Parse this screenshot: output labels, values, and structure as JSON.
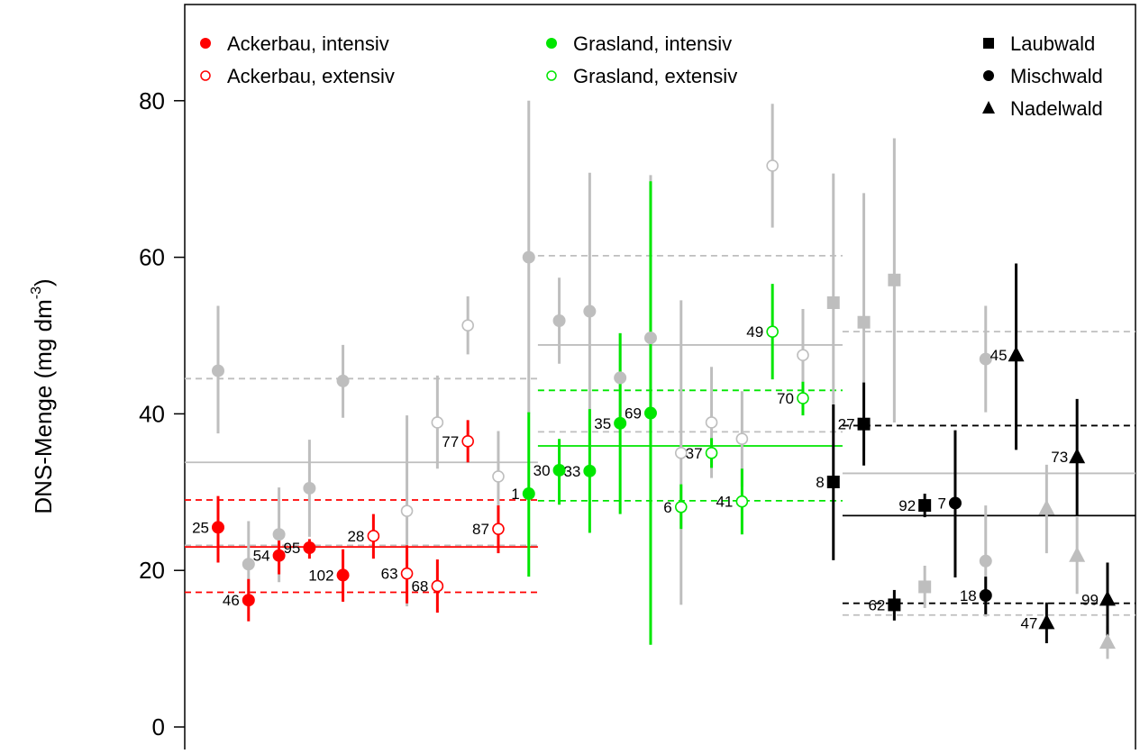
{
  "chart_data": {
    "type": "scatter",
    "title": "",
    "xlabel": "",
    "ylabel": "DNS-Menge (mg dm",
    "ylabel_superscript": "-3",
    "ylabel_suffix": ")",
    "ylim": [
      0,
      90
    ],
    "yticks": [
      0,
      20,
      40,
      60,
      80
    ],
    "grid": false,
    "legend_position": "top",
    "colors": {
      "ackerbau": "#ff0000",
      "grasland": "#00e600",
      "wald": "#000000",
      "reference": "#bebebe"
    },
    "legend": [
      {
        "label": "Ackerbau, intensiv",
        "color": "#ff0000",
        "shape": "circle",
        "filled": true
      },
      {
        "label": "Ackerbau, extensiv",
        "color": "#ff0000",
        "shape": "circle",
        "filled": false
      },
      {
        "label": "Grasland, intensiv",
        "color": "#00e600",
        "shape": "circle",
        "filled": true
      },
      {
        "label": "Grasland, extensiv",
        "color": "#00e600",
        "shape": "circle",
        "filled": false
      },
      {
        "label": "Laubwald",
        "color": "#000000",
        "shape": "square",
        "filled": true
      },
      {
        "label": "Mischwald",
        "color": "#000000",
        "shape": "circle",
        "filled": true
      },
      {
        "label": "Nadelwald",
        "color": "#000000",
        "shape": "triangle",
        "filled": true
      }
    ],
    "points": [
      {
        "x": 1.0,
        "y": 45.5,
        "lo": 37.5,
        "hi": 53.8,
        "color": "#bebebe",
        "shape": "circle",
        "filled": true,
        "label": ""
      },
      {
        "x": 1.0,
        "y": 25.5,
        "lo": 21.0,
        "hi": 29.5,
        "color": "#ff0000",
        "shape": "circle",
        "filled": true,
        "label": "25"
      },
      {
        "x": 2.0,
        "y": 20.8,
        "lo": 15.5,
        "hi": 26.3,
        "color": "#bebebe",
        "shape": "circle",
        "filled": true,
        "label": ""
      },
      {
        "x": 2.0,
        "y": 16.2,
        "lo": 13.5,
        "hi": 18.9,
        "color": "#ff0000",
        "shape": "circle",
        "filled": true,
        "label": "46"
      },
      {
        "x": 3.0,
        "y": 24.6,
        "lo": 18.5,
        "hi": 30.6,
        "color": "#bebebe",
        "shape": "circle",
        "filled": true,
        "label": ""
      },
      {
        "x": 3.0,
        "y": 21.9,
        "lo": 19.5,
        "hi": 24.0,
        "color": "#ff0000",
        "shape": "circle",
        "filled": true,
        "label": "54"
      },
      {
        "x": 4.0,
        "y": 30.5,
        "lo": 24.3,
        "hi": 36.7,
        "color": "#bebebe",
        "shape": "circle",
        "filled": true,
        "label": ""
      },
      {
        "x": 4.0,
        "y": 22.9,
        "lo": 21.5,
        "hi": 24.0,
        "color": "#ff0000",
        "shape": "circle",
        "filled": true,
        "label": "95"
      },
      {
        "x": 5.1,
        "y": 44.2,
        "lo": 39.5,
        "hi": 48.8,
        "color": "#bebebe",
        "shape": "circle",
        "filled": true,
        "label": ""
      },
      {
        "x": 5.1,
        "y": 19.4,
        "lo": 16.0,
        "hi": 22.7,
        "color": "#ff0000",
        "shape": "circle",
        "filled": true,
        "label": "102"
      },
      {
        "x": 6.1,
        "y": 24.4,
        "lo": 21.5,
        "hi": 27.2,
        "color": "#ff0000",
        "shape": "circle",
        "filled": false,
        "label": "28"
      },
      {
        "x": 7.2,
        "y": 27.6,
        "lo": 15.4,
        "hi": 39.8,
        "color": "#bebebe",
        "shape": "circle",
        "filled": false,
        "label": ""
      },
      {
        "x": 7.2,
        "y": 19.6,
        "lo": 15.8,
        "hi": 23.2,
        "color": "#ff0000",
        "shape": "circle",
        "filled": false,
        "label": "63"
      },
      {
        "x": 8.2,
        "y": 38.9,
        "lo": 33.0,
        "hi": 44.9,
        "color": "#bebebe",
        "shape": "circle",
        "filled": false,
        "label": ""
      },
      {
        "x": 8.2,
        "y": 18.0,
        "lo": 14.6,
        "hi": 21.4,
        "color": "#ff0000",
        "shape": "circle",
        "filled": false,
        "label": "68"
      },
      {
        "x": 9.2,
        "y": 51.3,
        "lo": 47.6,
        "hi": 55.0,
        "color": "#bebebe",
        "shape": "circle",
        "filled": false,
        "label": ""
      },
      {
        "x": 9.2,
        "y": 36.5,
        "lo": 33.8,
        "hi": 39.2,
        "color": "#ff0000",
        "shape": "circle",
        "filled": false,
        "label": "77"
      },
      {
        "x": 10.2,
        "y": 32.0,
        "lo": 26.0,
        "hi": 37.8,
        "color": "#bebebe",
        "shape": "circle",
        "filled": false,
        "label": ""
      },
      {
        "x": 10.2,
        "y": 25.3,
        "lo": 22.2,
        "hi": 28.3,
        "color": "#ff0000",
        "shape": "circle",
        "filled": false,
        "label": "87"
      },
      {
        "x": 11.2,
        "y": 60.0,
        "lo": 40.0,
        "hi": 80.0,
        "color": "#bebebe",
        "shape": "circle",
        "filled": true,
        "label": ""
      },
      {
        "x": 11.2,
        "y": 29.8,
        "lo": 19.2,
        "hi": 40.2,
        "color": "#00e600",
        "shape": "circle",
        "filled": true,
        "label": "1"
      },
      {
        "x": 12.2,
        "y": 51.9,
        "lo": 46.4,
        "hi": 57.4,
        "color": "#bebebe",
        "shape": "circle",
        "filled": true,
        "label": ""
      },
      {
        "x": 12.2,
        "y": 32.8,
        "lo": 28.4,
        "hi": 36.8,
        "color": "#00e600",
        "shape": "circle",
        "filled": true,
        "label": "30"
      },
      {
        "x": 13.2,
        "y": 53.1,
        "lo": 35.4,
        "hi": 70.8,
        "color": "#bebebe",
        "shape": "circle",
        "filled": true,
        "label": ""
      },
      {
        "x": 13.2,
        "y": 32.7,
        "lo": 24.8,
        "hi": 40.6,
        "color": "#00e600",
        "shape": "circle",
        "filled": true,
        "label": "33"
      },
      {
        "x": 14.2,
        "y": 44.6,
        "lo": 39.0,
        "hi": 50.3,
        "color": "#bebebe",
        "shape": "circle",
        "filled": true,
        "label": ""
      },
      {
        "x": 14.2,
        "y": 38.8,
        "lo": 27.2,
        "hi": 50.3,
        "color": "#00e600",
        "shape": "circle",
        "filled": true,
        "label": "35"
      },
      {
        "x": 15.2,
        "y": 49.7,
        "lo": 28.5,
        "hi": 70.5,
        "color": "#bebebe",
        "shape": "circle",
        "filled": true,
        "label": ""
      },
      {
        "x": 15.2,
        "y": 40.1,
        "lo": 10.5,
        "hi": 69.7,
        "color": "#00e600",
        "shape": "circle",
        "filled": true,
        "label": "69"
      },
      {
        "x": 16.2,
        "y": 35.0,
        "lo": 15.6,
        "hi": 54.5,
        "color": "#bebebe",
        "shape": "circle",
        "filled": false,
        "label": ""
      },
      {
        "x": 16.2,
        "y": 28.1,
        "lo": 25.3,
        "hi": 31.0,
        "color": "#00e600",
        "shape": "circle",
        "filled": false,
        "label": "6"
      },
      {
        "x": 17.2,
        "y": 38.9,
        "lo": 31.8,
        "hi": 46.0,
        "color": "#bebebe",
        "shape": "circle",
        "filled": false,
        "label": ""
      },
      {
        "x": 17.2,
        "y": 35.0,
        "lo": 33.1,
        "hi": 36.9,
        "color": "#00e600",
        "shape": "circle",
        "filled": false,
        "label": "37"
      },
      {
        "x": 18.2,
        "y": 36.8,
        "lo": 30.7,
        "hi": 42.9,
        "color": "#bebebe",
        "shape": "circle",
        "filled": false,
        "label": ""
      },
      {
        "x": 18.2,
        "y": 28.8,
        "lo": 24.6,
        "hi": 33.0,
        "color": "#00e600",
        "shape": "circle",
        "filled": false,
        "label": "41"
      },
      {
        "x": 19.2,
        "y": 71.7,
        "lo": 63.8,
        "hi": 79.6,
        "color": "#bebebe",
        "shape": "circle",
        "filled": false,
        "label": ""
      },
      {
        "x": 19.2,
        "y": 50.5,
        "lo": 44.4,
        "hi": 56.6,
        "color": "#00e600",
        "shape": "circle",
        "filled": false,
        "label": "49"
      },
      {
        "x": 20.2,
        "y": 47.5,
        "lo": 41.5,
        "hi": 53.4,
        "color": "#bebebe",
        "shape": "circle",
        "filled": false,
        "label": ""
      },
      {
        "x": 20.2,
        "y": 42.0,
        "lo": 39.8,
        "hi": 44.1,
        "color": "#00e600",
        "shape": "circle",
        "filled": false,
        "label": "70"
      },
      {
        "x": 21.2,
        "y": 54.2,
        "lo": 37.7,
        "hi": 70.7,
        "color": "#bebebe",
        "shape": "square",
        "filled": true,
        "label": ""
      },
      {
        "x": 21.2,
        "y": 31.3,
        "lo": 21.3,
        "hi": 41.2,
        "color": "#000000",
        "shape": "square",
        "filled": true,
        "label": "8"
      },
      {
        "x": 22.2,
        "y": 51.7,
        "lo": 35.3,
        "hi": 68.2,
        "color": "#bebebe",
        "shape": "square",
        "filled": true,
        "label": ""
      },
      {
        "x": 22.2,
        "y": 38.7,
        "lo": 33.4,
        "hi": 44.0,
        "color": "#000000",
        "shape": "square",
        "filled": true,
        "label": "27"
      },
      {
        "x": 23.2,
        "y": 57.1,
        "lo": 38.9,
        "hi": 75.2,
        "color": "#bebebe",
        "shape": "square",
        "filled": true,
        "label": ""
      },
      {
        "x": 23.2,
        "y": 15.6,
        "lo": 13.6,
        "hi": 17.5,
        "color": "#000000",
        "shape": "square",
        "filled": true,
        "label": "62"
      },
      {
        "x": 24.2,
        "y": 17.9,
        "lo": 15.2,
        "hi": 20.6,
        "color": "#bebebe",
        "shape": "square",
        "filled": true,
        "label": ""
      },
      {
        "x": 24.2,
        "y": 28.3,
        "lo": 26.8,
        "hi": 29.8,
        "color": "#000000",
        "shape": "square",
        "filled": true,
        "label": "92"
      },
      {
        "x": 25.2,
        "y": 28.6,
        "lo": 19.1,
        "hi": 37.9,
        "color": "#000000",
        "shape": "circle",
        "filled": true,
        "label": "7"
      },
      {
        "x": 26.2,
        "y": 47.0,
        "lo": 40.2,
        "hi": 53.8,
        "color": "#bebebe",
        "shape": "circle",
        "filled": true,
        "label": ""
      },
      {
        "x": 26.2,
        "y": 21.2,
        "lo": 14.1,
        "hi": 28.3,
        "color": "#bebebe",
        "shape": "circle",
        "filled": true,
        "label": ""
      },
      {
        "x": 26.2,
        "y": 16.8,
        "lo": 14.4,
        "hi": 19.2,
        "color": "#000000",
        "shape": "circle",
        "filled": true,
        "label": "18"
      },
      {
        "x": 27.2,
        "y": 47.5,
        "lo": 35.4,
        "hi": 59.2,
        "color": "#000000",
        "shape": "triangle",
        "filled": true,
        "label": "45"
      },
      {
        "x": 28.2,
        "y": 27.9,
        "lo": 22.2,
        "hi": 33.5,
        "color": "#bebebe",
        "shape": "triangle",
        "filled": true,
        "label": ""
      },
      {
        "x": 28.2,
        "y": 13.3,
        "lo": 10.7,
        "hi": 15.9,
        "color": "#000000",
        "shape": "triangle",
        "filled": true,
        "label": "47"
      },
      {
        "x": 29.2,
        "y": 21.9,
        "lo": 17.0,
        "hi": 26.8,
        "color": "#bebebe",
        "shape": "triangle",
        "filled": true,
        "label": ""
      },
      {
        "x": 29.2,
        "y": 34.5,
        "lo": 27.1,
        "hi": 41.9,
        "color": "#000000",
        "shape": "triangle",
        "filled": true,
        "label": "73"
      },
      {
        "x": 30.2,
        "y": 10.8,
        "lo": 8.7,
        "hi": 12.9,
        "color": "#bebebe",
        "shape": "triangle",
        "filled": true,
        "label": ""
      },
      {
        "x": 30.2,
        "y": 16.3,
        "lo": 11.6,
        "hi": 21.0,
        "color": "#000000",
        "shape": "triangle",
        "filled": true,
        "label": "99"
      }
    ],
    "reference_lines": [
      {
        "x_from": 0,
        "x_to": 11,
        "y": 44.5,
        "color": "#bebebe",
        "dashed": true
      },
      {
        "x_from": 0,
        "x_to": 11,
        "y": 33.8,
        "color": "#bebebe",
        "dashed": false
      },
      {
        "x_from": 0,
        "x_to": 11,
        "y": 23.2,
        "color": "#bebebe",
        "dashed": true
      },
      {
        "x_from": 0,
        "x_to": 11,
        "y": 29.0,
        "color": "#ff0000",
        "dashed": true
      },
      {
        "x_from": 0,
        "x_to": 11,
        "y": 23.0,
        "color": "#ff0000",
        "dashed": false
      },
      {
        "x_from": 0,
        "x_to": 11,
        "y": 17.2,
        "color": "#ff0000",
        "dashed": true
      },
      {
        "x_from": 11,
        "x_to": 21,
        "y": 60.2,
        "color": "#bebebe",
        "dashed": true
      },
      {
        "x_from": 11,
        "x_to": 21,
        "y": 48.8,
        "color": "#bebebe",
        "dashed": false
      },
      {
        "x_from": 11,
        "x_to": 21,
        "y": 37.7,
        "color": "#bebebe",
        "dashed": true
      },
      {
        "x_from": 11,
        "x_to": 21,
        "y": 43.0,
        "color": "#00e600",
        "dashed": true
      },
      {
        "x_from": 11,
        "x_to": 21,
        "y": 35.9,
        "color": "#00e600",
        "dashed": false
      },
      {
        "x_from": 11,
        "x_to": 21,
        "y": 28.9,
        "color": "#00e600",
        "dashed": true
      },
      {
        "x_from": 21,
        "x_to": 31,
        "y": 50.5,
        "color": "#bebebe",
        "dashed": true
      },
      {
        "x_from": 21,
        "x_to": 31,
        "y": 32.4,
        "color": "#bebebe",
        "dashed": false
      },
      {
        "x_from": 21,
        "x_to": 31,
        "y": 14.3,
        "color": "#bebebe",
        "dashed": true
      },
      {
        "x_from": 21,
        "x_to": 31,
        "y": 38.5,
        "color": "#000000",
        "dashed": true
      },
      {
        "x_from": 21,
        "x_to": 31,
        "y": 27.0,
        "color": "#000000",
        "dashed": false
      },
      {
        "x_from": 21,
        "x_to": 31,
        "y": 15.8,
        "color": "#000000",
        "dashed": true
      }
    ]
  }
}
